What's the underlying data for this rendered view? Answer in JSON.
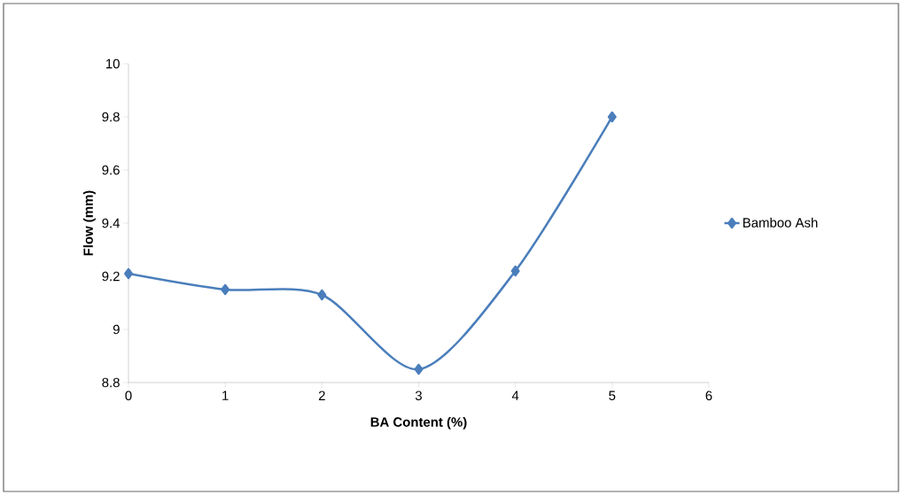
{
  "chart_data": {
    "type": "line",
    "xlabel": "BA Content (%)",
    "ylabel": "Flow (mm)",
    "x": [
      0,
      1,
      2,
      3,
      4,
      5
    ],
    "series": [
      {
        "name": "Bamboo Ash",
        "color": "#4a7ebb",
        "values": [
          9.21,
          9.15,
          9.13,
          8.85,
          9.22,
          9.8
        ]
      }
    ],
    "xlim": [
      0,
      6
    ],
    "xticks": [
      0,
      1,
      2,
      3,
      4,
      5,
      6
    ],
    "ylim": [
      8.8,
      10
    ],
    "yticks": [
      8.8,
      9,
      9.2,
      9.4,
      9.6,
      9.8,
      10
    ],
    "marker": "diamond",
    "line_style": "solid",
    "legend": "right",
    "grid": false
  }
}
